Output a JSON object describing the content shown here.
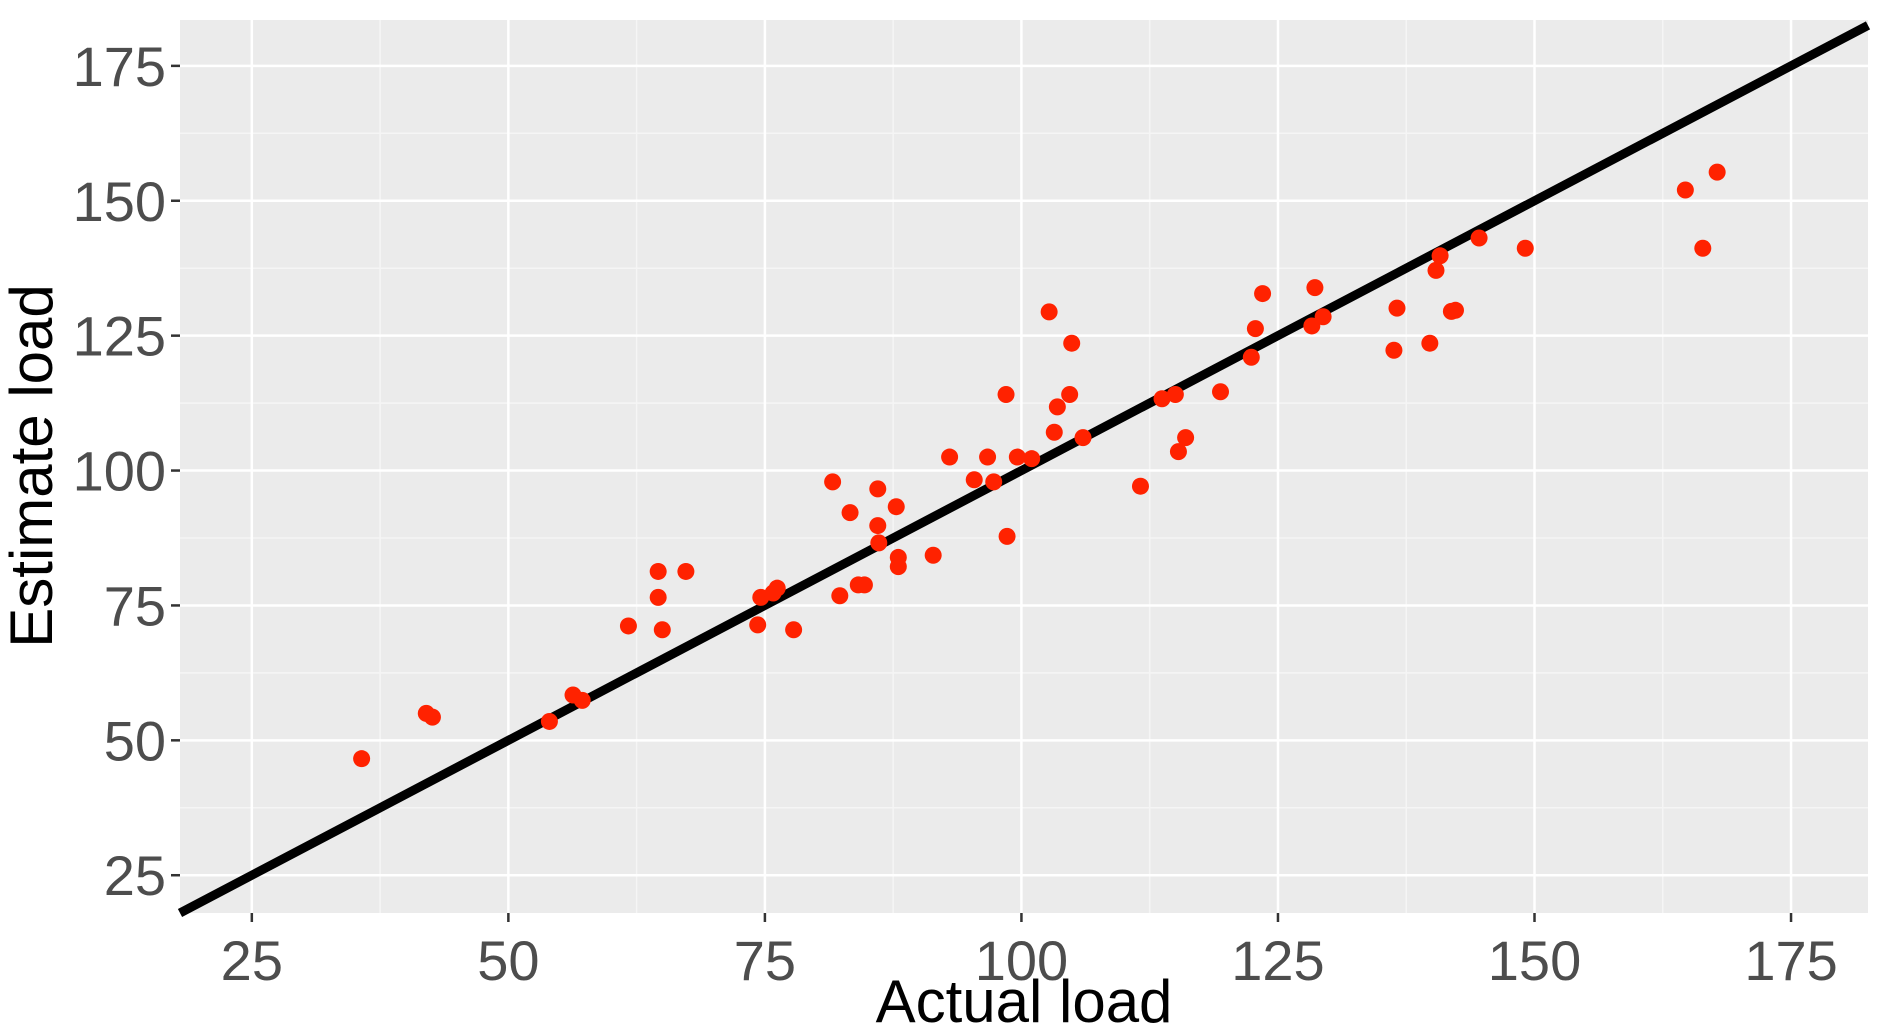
{
  "chart_data": {
    "type": "scatter",
    "title": "",
    "xlabel": "Actual load",
    "ylabel": "Estimate load",
    "xlim": [
      18,
      182.5
    ],
    "ylim": [
      18,
      183.5
    ],
    "xticks": [
      25,
      50,
      75,
      100,
      125,
      150,
      175
    ],
    "yticks": [
      25,
      50,
      75,
      100,
      125,
      150,
      175
    ],
    "grid": true,
    "legend": "none",
    "reference_line": {
      "type": "identity",
      "slope": 1,
      "intercept": 0,
      "color": "#000000"
    },
    "colors": {
      "panel": "#ebebeb",
      "grid_major": "#ffffff",
      "points": "#ff2200",
      "line": "#000000"
    },
    "points": [
      {
        "x": 35.7,
        "y": 46.6
      },
      {
        "x": 42.0,
        "y": 55.0
      },
      {
        "x": 42.6,
        "y": 54.3
      },
      {
        "x": 54.0,
        "y": 53.5
      },
      {
        "x": 56.3,
        "y": 58.4
      },
      {
        "x": 57.2,
        "y": 57.4
      },
      {
        "x": 61.7,
        "y": 71.2
      },
      {
        "x": 64.6,
        "y": 81.3
      },
      {
        "x": 64.6,
        "y": 76.5
      },
      {
        "x": 65.0,
        "y": 70.5
      },
      {
        "x": 67.3,
        "y": 81.3
      },
      {
        "x": 74.3,
        "y": 71.4
      },
      {
        "x": 74.6,
        "y": 76.5
      },
      {
        "x": 75.8,
        "y": 77.3
      },
      {
        "x": 76.2,
        "y": 78.2
      },
      {
        "x": 77.8,
        "y": 70.5
      },
      {
        "x": 81.6,
        "y": 97.9
      },
      {
        "x": 82.3,
        "y": 76.8
      },
      {
        "x": 83.3,
        "y": 92.2
      },
      {
        "x": 84.1,
        "y": 78.8
      },
      {
        "x": 84.7,
        "y": 78.8
      },
      {
        "x": 86.0,
        "y": 96.6
      },
      {
        "x": 86.0,
        "y": 89.8
      },
      {
        "x": 86.1,
        "y": 86.6
      },
      {
        "x": 87.8,
        "y": 93.3
      },
      {
        "x": 88.0,
        "y": 83.9
      },
      {
        "x": 88.0,
        "y": 82.2
      },
      {
        "x": 91.4,
        "y": 84.3
      },
      {
        "x": 93.0,
        "y": 102.5
      },
      {
        "x": 95.4,
        "y": 98.3
      },
      {
        "x": 96.7,
        "y": 102.5
      },
      {
        "x": 97.3,
        "y": 97.9
      },
      {
        "x": 98.5,
        "y": 114.1
      },
      {
        "x": 98.6,
        "y": 87.8
      },
      {
        "x": 99.6,
        "y": 102.5
      },
      {
        "x": 101.0,
        "y": 102.2
      },
      {
        "x": 102.7,
        "y": 129.4
      },
      {
        "x": 103.2,
        "y": 107.1
      },
      {
        "x": 103.5,
        "y": 111.8
      },
      {
        "x": 104.7,
        "y": 114.1
      },
      {
        "x": 104.9,
        "y": 123.6
      },
      {
        "x": 106.0,
        "y": 106.1
      },
      {
        "x": 111.6,
        "y": 97.1
      },
      {
        "x": 113.7,
        "y": 113.3
      },
      {
        "x": 115.0,
        "y": 114.1
      },
      {
        "x": 115.3,
        "y": 103.5
      },
      {
        "x": 116.0,
        "y": 106.1
      },
      {
        "x": 119.4,
        "y": 114.6
      },
      {
        "x": 122.4,
        "y": 121.0
      },
      {
        "x": 122.8,
        "y": 126.3
      },
      {
        "x": 123.5,
        "y": 132.8
      },
      {
        "x": 128.3,
        "y": 126.8
      },
      {
        "x": 128.6,
        "y": 133.9
      },
      {
        "x": 129.4,
        "y": 128.5
      },
      {
        "x": 136.3,
        "y": 122.3
      },
      {
        "x": 136.6,
        "y": 130.1
      },
      {
        "x": 139.8,
        "y": 123.6
      },
      {
        "x": 140.4,
        "y": 137.1
      },
      {
        "x": 140.8,
        "y": 139.8
      },
      {
        "x": 141.9,
        "y": 129.5
      },
      {
        "x": 142.3,
        "y": 129.7
      },
      {
        "x": 144.6,
        "y": 143.1
      },
      {
        "x": 149.1,
        "y": 141.2
      },
      {
        "x": 164.7,
        "y": 152.0
      },
      {
        "x": 166.4,
        "y": 141.2
      },
      {
        "x": 167.8,
        "y": 155.3
      }
    ]
  }
}
